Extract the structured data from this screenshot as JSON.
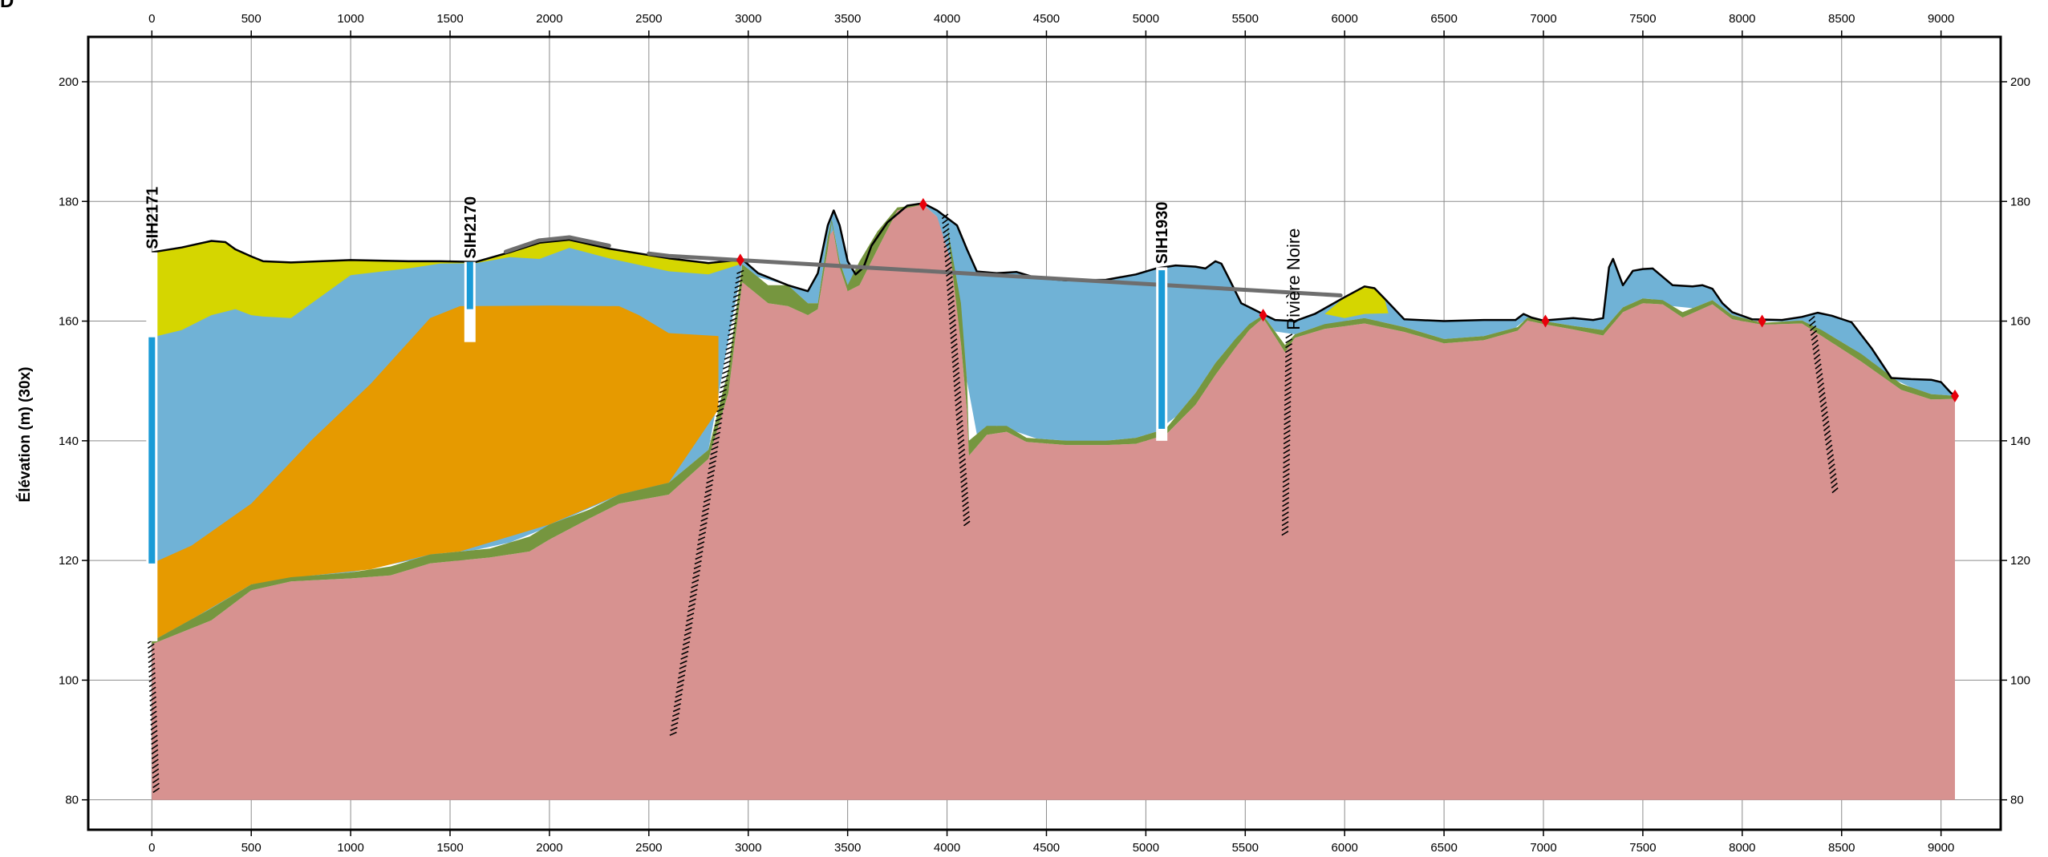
{
  "panel_label": "D",
  "axis": {
    "y_title": "Élévation (m) (30x)"
  },
  "chart_data": {
    "type": "cross-section",
    "x_ticks": [
      0,
      500,
      1000,
      1500,
      2000,
      2500,
      3000,
      3500,
      4000,
      4500,
      5000,
      5500,
      6000,
      6500,
      7000,
      7500,
      8000,
      8500,
      9000
    ],
    "y_ticks": [
      80,
      100,
      120,
      140,
      160,
      180,
      200
    ],
    "xlim": [
      -320,
      9300
    ],
    "ylim": [
      75,
      207.5
    ],
    "grid": true,
    "colors": {
      "bedrock": "#d79290",
      "till": "#76963f",
      "blue_unit": "#70b2d6",
      "orange_unit": "#e69a00",
      "yellow_unit": "#d5d600",
      "surface_line": "#000000",
      "organic_cap": "#6e6e6e",
      "fault_hatch": "#000000",
      "marker": "#e8000b",
      "well_screen": "#1a9bd7"
    },
    "layers": {
      "yellow_top": [
        [
          0,
          171.5
        ],
        [
          150,
          172.3
        ],
        [
          300,
          173.4
        ],
        [
          370,
          173.2
        ],
        [
          420,
          172
        ],
        [
          500,
          170.8
        ],
        [
          560,
          170
        ],
        [
          700,
          169.8
        ],
        [
          1000,
          170.2
        ],
        [
          1300,
          170
        ],
        [
          1450,
          170
        ],
        [
          1630,
          169.9
        ],
        [
          1800,
          171.5
        ],
        [
          1950,
          173.1
        ],
        [
          2100,
          173.6
        ],
        [
          2300,
          172.1
        ],
        [
          2600,
          170.5
        ],
        [
          2800,
          169.7
        ],
        [
          2960,
          170.2
        ]
      ],
      "blue_top": [
        [
          0,
          157.3
        ],
        [
          150,
          158.5
        ],
        [
          300,
          161
        ],
        [
          420,
          162
        ],
        [
          500,
          161
        ],
        [
          620,
          160.5
        ],
        [
          800,
          160.5
        ],
        [
          950,
          163.5
        ],
        [
          1030,
          170.2
        ],
        [
          1200,
          170.1
        ],
        [
          1250,
          169.4
        ],
        [
          1350,
          168.3
        ],
        [
          1430,
          169.6
        ],
        [
          1650,
          169.7
        ],
        [
          1800,
          170.7
        ],
        [
          1850,
          168.8
        ],
        [
          1920,
          169.7
        ],
        [
          2050,
          172.7
        ],
        [
          2150,
          171.8
        ],
        [
          2400,
          169.6
        ],
        [
          2650,
          168
        ],
        [
          2900,
          167.7
        ],
        [
          2960,
          169.5
        ]
      ],
      "orange_top": [
        [
          0,
          119.5
        ],
        [
          200,
          122.5
        ],
        [
          500,
          129.5
        ],
        [
          800,
          140
        ],
        [
          1100,
          149.5
        ],
        [
          1400,
          160.5
        ],
        [
          1550,
          162.5
        ],
        [
          2000,
          162.6
        ],
        [
          2350,
          162.5
        ],
        [
          2450,
          161
        ],
        [
          2600,
          158
        ],
        [
          2850,
          157.5
        ]
      ],
      "till_top": [
        [
          0,
          106.5
        ],
        [
          300,
          112
        ],
        [
          500,
          116
        ],
        [
          700,
          117.2
        ],
        [
          1000,
          118
        ],
        [
          1200,
          119
        ],
        [
          1400,
          121
        ],
        [
          1700,
          122
        ],
        [
          1900,
          124
        ],
        [
          2000,
          126
        ],
        [
          2200,
          128.5
        ],
        [
          2350,
          131
        ],
        [
          2600,
          133
        ],
        [
          2800,
          138.5
        ],
        [
          2900,
          152
        ],
        [
          2970,
          169.5
        ],
        [
          3100,
          166
        ],
        [
          3200,
          166
        ],
        [
          3300,
          163
        ],
        [
          3350,
          163
        ],
        [
          3400,
          174
        ],
        [
          3420,
          177
        ],
        [
          3460,
          170
        ],
        [
          3500,
          166
        ],
        [
          3560,
          170
        ],
        [
          3650,
          175
        ],
        [
          3750,
          179
        ],
        [
          3880,
          179.5
        ],
        [
          4000,
          176
        ],
        [
          4070,
          163
        ],
        [
          4100,
          150
        ],
        [
          4110,
          140
        ],
        [
          4200,
          142.5
        ],
        [
          4300,
          142.5
        ],
        [
          4400,
          140.5
        ],
        [
          4600,
          140
        ],
        [
          4800,
          140
        ],
        [
          4950,
          140.5
        ],
        [
          5100,
          142
        ],
        [
          5250,
          148
        ],
        [
          5350,
          153
        ],
        [
          5450,
          157
        ],
        [
          5520,
          159.5
        ],
        [
          5590,
          161
        ],
        [
          5700,
          156
        ],
        [
          5750,
          157.8
        ],
        [
          5900,
          159.5
        ],
        [
          6100,
          160.5
        ],
        [
          6300,
          159
        ],
        [
          6500,
          157
        ],
        [
          6700,
          157.5
        ],
        [
          6870,
          159
        ],
        [
          6920,
          160.6
        ],
        [
          7000,
          160
        ],
        [
          7150,
          159.2
        ],
        [
          7300,
          158.5
        ],
        [
          7400,
          162.3
        ],
        [
          7500,
          163.8
        ],
        [
          7600,
          163.5
        ],
        [
          7700,
          161.5
        ],
        [
          7850,
          163.5
        ],
        [
          7950,
          161
        ],
        [
          8100,
          159.7
        ],
        [
          8300,
          160.1
        ],
        [
          8400,
          158.5
        ],
        [
          8600,
          154.5
        ],
        [
          8800,
          149.5
        ],
        [
          8950,
          147.8
        ],
        [
          9070,
          147.5
        ]
      ],
      "bedrock_top": [
        [
          0,
          106
        ],
        [
          300,
          110
        ],
        [
          500,
          115
        ],
        [
          700,
          116.5
        ],
        [
          1000,
          117
        ],
        [
          1200,
          117.5
        ],
        [
          1400,
          119.5
        ],
        [
          1700,
          120.5
        ],
        [
          1900,
          121.5
        ],
        [
          2000,
          123.5
        ],
        [
          2200,
          127
        ],
        [
          2350,
          129.5
        ],
        [
          2600,
          131
        ],
        [
          2800,
          137
        ],
        [
          2900,
          148
        ],
        [
          2970,
          166.5
        ],
        [
          3100,
          163
        ],
        [
          3200,
          162.5
        ],
        [
          3300,
          161
        ],
        [
          3350,
          162
        ],
        [
          3400,
          172
        ],
        [
          3420,
          176.5
        ],
        [
          3460,
          169
        ],
        [
          3500,
          165
        ],
        [
          3560,
          166
        ],
        [
          3650,
          172
        ],
        [
          3750,
          178.5
        ],
        [
          3880,
          179.5
        ],
        [
          4000,
          176
        ],
        [
          4060,
          160
        ],
        [
          4100,
          145
        ],
        [
          4110,
          137.5
        ],
        [
          4200,
          141
        ],
        [
          4300,
          141.5
        ],
        [
          4400,
          139.8
        ],
        [
          4600,
          139.3
        ],
        [
          4800,
          139.3
        ],
        [
          4950,
          139.5
        ],
        [
          5100,
          141
        ],
        [
          5250,
          146
        ],
        [
          5350,
          151
        ],
        [
          5450,
          155.5
        ],
        [
          5520,
          158.5
        ],
        [
          5590,
          160.5
        ],
        [
          5700,
          154.8
        ],
        [
          5750,
          157.2
        ],
        [
          5900,
          158.7
        ],
        [
          6100,
          159.6
        ],
        [
          6300,
          158.2
        ],
        [
          6500,
          156.3
        ],
        [
          6700,
          156.8
        ],
        [
          6870,
          158.4
        ],
        [
          6920,
          160.1
        ],
        [
          7000,
          159.5
        ],
        [
          7150,
          158.6
        ],
        [
          7300,
          157.6
        ],
        [
          7400,
          161.5
        ],
        [
          7500,
          163
        ],
        [
          7600,
          162.8
        ],
        [
          7700,
          160.6
        ],
        [
          7850,
          162.8
        ],
        [
          7950,
          160.3
        ],
        [
          8100,
          159.4
        ],
        [
          8300,
          159.6
        ],
        [
          8400,
          157.5
        ],
        [
          8600,
          153.2
        ],
        [
          8800,
          148.5
        ],
        [
          8950,
          146.9
        ],
        [
          9070,
          147
        ]
      ],
      "ground_surface": [
        [
          0,
          171.5
        ],
        [
          150,
          172.3
        ],
        [
          300,
          173.4
        ],
        [
          370,
          173.2
        ],
        [
          420,
          172
        ],
        [
          500,
          170.8
        ],
        [
          560,
          170
        ],
        [
          700,
          169.8
        ],
        [
          1000,
          170.2
        ],
        [
          1300,
          170
        ],
        [
          1450,
          170
        ],
        [
          1630,
          169.9
        ],
        [
          1800,
          171.5
        ],
        [
          1950,
          173.1
        ],
        [
          2100,
          173.6
        ],
        [
          2300,
          172.1
        ],
        [
          2600,
          170.5
        ],
        [
          2800,
          169.7
        ],
        [
          2970,
          170.3
        ],
        [
          3050,
          168
        ],
        [
          3200,
          166
        ],
        [
          3300,
          165
        ],
        [
          3350,
          168
        ],
        [
          3400,
          176
        ],
        [
          3430,
          178.5
        ],
        [
          3460,
          176
        ],
        [
          3500,
          170
        ],
        [
          3540,
          167.8
        ],
        [
          3580,
          169
        ],
        [
          3620,
          172.6
        ],
        [
          3700,
          176.5
        ],
        [
          3800,
          179.3
        ],
        [
          3880,
          179.7
        ],
        [
          3950,
          178.5
        ],
        [
          4050,
          176
        ],
        [
          4100,
          172
        ],
        [
          4150,
          168.3
        ],
        [
          4250,
          168
        ],
        [
          4350,
          168.2
        ],
        [
          4450,
          167.2
        ],
        [
          4600,
          166.8
        ],
        [
          4800,
          166.9
        ],
        [
          4950,
          167.8
        ],
        [
          5050,
          168.8
        ],
        [
          5150,
          169.3
        ],
        [
          5250,
          169.1
        ],
        [
          5300,
          168.8
        ],
        [
          5350,
          170
        ],
        [
          5380,
          169.6
        ],
        [
          5420,
          167
        ],
        [
          5480,
          163
        ],
        [
          5540,
          162
        ],
        [
          5600,
          161
        ],
        [
          5650,
          160.2
        ],
        [
          5750,
          160
        ],
        [
          5850,
          161.2
        ],
        [
          6000,
          164
        ],
        [
          6100,
          165.8
        ],
        [
          6150,
          165.5
        ],
        [
          6200,
          163.8
        ],
        [
          6300,
          160.3
        ],
        [
          6500,
          160
        ],
        [
          6700,
          160.2
        ],
        [
          6860,
          160.2
        ],
        [
          6900,
          161.2
        ],
        [
          6940,
          160.6
        ],
        [
          7000,
          160.1
        ],
        [
          7150,
          160.5
        ],
        [
          7250,
          160.2
        ],
        [
          7300,
          160.5
        ],
        [
          7330,
          169
        ],
        [
          7350,
          170.4
        ],
        [
          7400,
          166
        ],
        [
          7450,
          168.4
        ],
        [
          7500,
          168.7
        ],
        [
          7550,
          168.8
        ],
        [
          7650,
          166
        ],
        [
          7750,
          165.8
        ],
        [
          7800,
          166
        ],
        [
          7850,
          165.4
        ],
        [
          7900,
          163
        ],
        [
          7950,
          161.5
        ],
        [
          8050,
          160.3
        ],
        [
          8200,
          160.2
        ],
        [
          8300,
          160.7
        ],
        [
          8380,
          161.4
        ],
        [
          8450,
          160.9
        ],
        [
          8550,
          159.8
        ],
        [
          8650,
          155.5
        ],
        [
          8750,
          150.5
        ],
        [
          8850,
          150.3
        ],
        [
          8950,
          150.2
        ],
        [
          9000,
          149.8
        ],
        [
          9050,
          148
        ],
        [
          9070,
          147.6
        ]
      ],
      "organic_cap": [
        [
          1780,
          171.6
        ],
        [
          1950,
          173.5
        ],
        [
          2100,
          174
        ],
        [
          2300,
          172.6
        ],
        [
          2500,
          171.3
        ],
        [
          2600,
          170.9
        ],
        [
          5980,
          164.3
        ],
        [
          6100,
          166.3
        ],
        [
          6180,
          165.6
        ],
        [
          6270,
          161.3
        ]
      ],
      "cap_segments": [
        [
          0,
          4
        ],
        [
          4,
          7
        ]
      ],
      "inlier_yellow": [
        [
          5900,
          161.2
        ],
        [
          6000,
          164
        ],
        [
          6100,
          165.8
        ],
        [
          6150,
          165.5
        ],
        [
          6200,
          163.8
        ],
        [
          6220,
          161.3
        ],
        [
          6100,
          161.2
        ],
        [
          6000,
          160.5
        ]
      ],
      "blue_right_end": 9070
    },
    "faults": [
      {
        "top": [
          -5,
          106.5
        ],
        "bottom": [
          22,
          81.5
        ]
      },
      {
        "top": [
          2960,
          168.2
        ],
        "bottom": [
          2620,
          90.5
        ]
      },
      {
        "top": [
          3990,
          177.5
        ],
        "bottom": [
          4100,
          126
        ]
      },
      {
        "top": [
          5720,
          157.5
        ],
        "bottom": [
          5700,
          124.5
        ]
      },
      {
        "top": [
          8350,
          160.4
        ],
        "bottom": [
          8470,
          131
        ]
      }
    ],
    "markers": [
      {
        "x": 2960,
        "y": 170.2
      },
      {
        "x": 3880,
        "y": 179.5
      },
      {
        "x": 5590,
        "y": 161
      },
      {
        "x": 7010,
        "y": 160
      },
      {
        "x": 8100,
        "y": 160
      },
      {
        "x": 9070,
        "y": 147.5
      }
    ],
    "wells": [
      {
        "name": "SIH2171",
        "x": 0,
        "top": 171.5,
        "screen_top": 157.3,
        "screen_bottom": 119.5,
        "bottom": 106.5
      },
      {
        "name": "SIH2170",
        "x": 1600,
        "top": 169.9,
        "screen_top": 169.9,
        "screen_bottom": 162,
        "bottom": 156.5
      },
      {
        "name": "SIH1930",
        "x": 5080,
        "top": 169,
        "screen_top": 168.5,
        "screen_bottom": 142,
        "bottom": 140
      }
    ],
    "annotations": [
      {
        "text": "Rivière Noire",
        "x": 5740,
        "y": 170.5,
        "rotate": -90
      }
    ]
  }
}
